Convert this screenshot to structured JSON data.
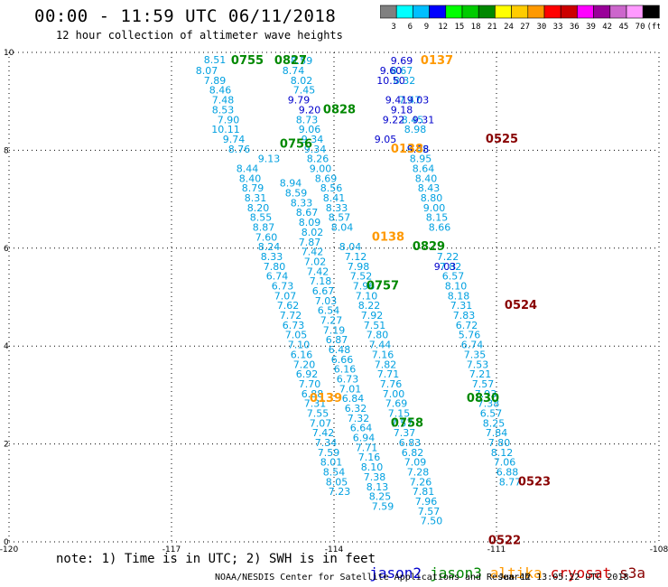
{
  "title": "00:00 - 11:59 UTC 06/11/2018",
  "subtitle": "12 hour collection of altimeter wave heights",
  "colorbar": {
    "labels": [
      "3",
      "6",
      "9",
      "12",
      "15",
      "18",
      "21",
      "24",
      "27",
      "30",
      "33",
      "36",
      "39",
      "42",
      "45",
      "70",
      "(ft)"
    ],
    "colors": [
      "#808080",
      "#00ffff",
      "#00bfff",
      "#0000ff",
      "#00ff00",
      "#00cc00",
      "#008800",
      "#ffff00",
      "#ffcc00",
      "#ff9900",
      "#ff0000",
      "#cc0000",
      "#ff00ff",
      "#990099",
      "#cc66cc",
      "#ff99ff",
      "#000000"
    ]
  },
  "note": "note: 1) Time is in UTC; 2) SWH is in feet",
  "credit": "NOAA/NESDIS Center for Satellite Applications and Research",
  "issued": "Jun 12 13:05:22 UTC 2018",
  "legend": [
    {
      "name": "jason2",
      "color": "#0000cc"
    },
    {
      "name": "jason3",
      "color": "#008800"
    },
    {
      "name": "altika",
      "color": "#ff9900"
    },
    {
      "name": "cryosat",
      "color": "#cc0000"
    },
    {
      "name": "s3a",
      "color": "#880000"
    }
  ],
  "chart_data": {
    "type": "scatter",
    "xlim": [
      -120,
      -108
    ],
    "ylim": [
      0,
      10
    ],
    "x_ticks": [
      -120,
      -117,
      -114,
      -111,
      -108
    ],
    "x_tick_labels": [
      "-120",
      "-117",
      "-114",
      "-111",
      "-108"
    ],
    "y_ticks": [
      0,
      2,
      4,
      6,
      8,
      10
    ],
    "y_tick_labels": [
      "0",
      "2",
      "4",
      "6",
      "8",
      "10"
    ],
    "grid": true,
    "series": [
      {
        "color": "#00a0e0",
        "points": [
          [
            -116.2,
            9.85,
            "8.51"
          ],
          [
            -116.35,
            9.63,
            "8.07"
          ],
          [
            -116.2,
            9.43,
            "7.89"
          ],
          [
            -116.1,
            9.23,
            "8.46"
          ],
          [
            -116.05,
            9.03,
            "7.48"
          ],
          [
            -116.05,
            8.83,
            "8.53"
          ],
          [
            -115.95,
            8.63,
            "7.90"
          ],
          [
            -116.0,
            8.43,
            "10.11"
          ],
          [
            -115.85,
            8.23,
            "9.74"
          ],
          [
            -115.75,
            8.03,
            "8.76"
          ],
          [
            -115.6,
            7.63,
            "8.44"
          ],
          [
            -115.55,
            7.43,
            "8.40"
          ],
          [
            -115.5,
            7.23,
            "8.79"
          ],
          [
            -115.45,
            7.03,
            "8.31"
          ],
          [
            -115.4,
            6.83,
            "8.20"
          ],
          [
            -115.35,
            6.63,
            "8.55"
          ],
          [
            -115.3,
            6.43,
            "8.87"
          ],
          [
            -115.25,
            6.23,
            "7.60"
          ],
          [
            -115.2,
            6.03,
            "8.24"
          ],
          [
            -115.15,
            5.83,
            "8.33"
          ],
          [
            -115.2,
            7.83,
            "9.13"
          ],
          [
            -115.1,
            5.63,
            "7.80"
          ],
          [
            -115.05,
            5.43,
            "6.74"
          ],
          [
            -114.95,
            5.23,
            "6.73"
          ],
          [
            -114.9,
            5.03,
            "7.07"
          ],
          [
            -114.85,
            4.83,
            "7.62"
          ],
          [
            -114.8,
            4.63,
            "7.72"
          ],
          [
            -114.75,
            4.43,
            "6.73"
          ],
          [
            -114.7,
            4.23,
            "7.05"
          ],
          [
            -114.65,
            4.03,
            "7.10"
          ],
          [
            -114.6,
            3.83,
            "6.16"
          ],
          [
            -114.55,
            3.63,
            "7.20"
          ],
          [
            -114.5,
            3.43,
            "6.92"
          ],
          [
            -114.45,
            3.23,
            "7.70"
          ],
          [
            -114.4,
            3.03,
            "6.88"
          ],
          [
            -114.35,
            2.83,
            "7.31"
          ],
          [
            -114.3,
            2.63,
            "7.55"
          ],
          [
            -114.25,
            2.43,
            "7.07"
          ],
          [
            -114.2,
            2.23,
            "7.42"
          ],
          [
            -114.15,
            2.03,
            "7.34"
          ],
          [
            -114.1,
            1.83,
            "7.59"
          ],
          [
            -114.05,
            1.63,
            "8.01"
          ],
          [
            -114.0,
            1.43,
            "8.54"
          ],
          [
            -113.95,
            1.23,
            "8.05"
          ],
          [
            -113.9,
            1.03,
            "7.23"
          ],
          [
            -114.8,
            7.33,
            "8.94"
          ],
          [
            -114.7,
            7.13,
            "8.59"
          ],
          [
            -114.6,
            6.93,
            "8.33"
          ],
          [
            -114.5,
            6.73,
            "8.67"
          ],
          [
            -114.45,
            6.53,
            "8.09"
          ],
          [
            -114.4,
            6.33,
            "8.02"
          ],
          [
            -114.45,
            6.13,
            "7.87"
          ],
          [
            -114.4,
            5.93,
            "7.42"
          ],
          [
            -114.35,
            5.73,
            "7.02"
          ],
          [
            -114.3,
            5.53,
            "7.42"
          ],
          [
            -114.25,
            5.33,
            "7.18"
          ],
          [
            -114.2,
            5.13,
            "6.67"
          ],
          [
            -114.15,
            4.93,
            "7.03"
          ],
          [
            -114.1,
            4.73,
            "6.54"
          ],
          [
            -114.05,
            4.53,
            "7.27"
          ],
          [
            -114.0,
            4.33,
            "7.19"
          ],
          [
            -113.95,
            4.13,
            "6.87"
          ],
          [
            -113.9,
            3.93,
            "6.48"
          ],
          [
            -113.85,
            3.73,
            "6.66"
          ],
          [
            -113.8,
            3.53,
            "6.16"
          ],
          [
            -113.75,
            3.33,
            "6.73"
          ],
          [
            -113.7,
            3.13,
            "7.01"
          ],
          [
            -113.65,
            2.93,
            "6.84"
          ],
          [
            -113.6,
            2.73,
            "6.32"
          ],
          [
            -113.55,
            2.53,
            "7.32"
          ],
          [
            -113.5,
            2.33,
            "6.64"
          ],
          [
            -113.45,
            2.13,
            "6.94"
          ],
          [
            -113.4,
            1.93,
            "7.71"
          ],
          [
            -113.35,
            1.73,
            "7.16"
          ],
          [
            -113.3,
            1.53,
            "8.10"
          ],
          [
            -113.25,
            1.33,
            "7.38"
          ],
          [
            -113.2,
            1.13,
            "8.13"
          ],
          [
            -113.15,
            0.93,
            "8.25"
          ],
          [
            -113.1,
            0.73,
            "7.59"
          ],
          [
            -114.6,
            9.83,
            "8.59"
          ],
          [
            -114.75,
            9.63,
            "8.74"
          ],
          [
            -114.6,
            9.43,
            "8.02"
          ],
          [
            -114.55,
            9.23,
            "7.45"
          ],
          [
            -114.5,
            8.63,
            "8.73"
          ],
          [
            -114.45,
            8.43,
            "9.06"
          ],
          [
            -114.4,
            8.23,
            "9.34"
          ],
          [
            -114.35,
            8.03,
            "9.34"
          ],
          [
            -114.3,
            7.83,
            "8.26"
          ],
          [
            -114.25,
            7.63,
            "9.00"
          ],
          [
            -114.15,
            7.43,
            "8.69"
          ],
          [
            -114.05,
            7.23,
            "8.56"
          ],
          [
            -114.0,
            7.03,
            "8.41"
          ],
          [
            -113.95,
            6.83,
            "8.33"
          ],
          [
            -113.9,
            6.63,
            "8.57"
          ],
          [
            -113.85,
            6.43,
            "8.04"
          ],
          [
            -113.7,
            6.03,
            "8.04"
          ],
          [
            -113.6,
            5.83,
            "7.12"
          ],
          [
            -113.55,
            5.63,
            "7.98"
          ],
          [
            -113.5,
            5.43,
            "7.52"
          ],
          [
            -113.45,
            5.23,
            "7.96"
          ],
          [
            -113.4,
            5.03,
            "7.10"
          ],
          [
            -113.35,
            4.83,
            "8.22"
          ],
          [
            -113.3,
            4.63,
            "7.92"
          ],
          [
            -113.25,
            4.43,
            "7.51"
          ],
          [
            -113.2,
            4.23,
            "7.80"
          ],
          [
            -113.15,
            4.03,
            "7.44"
          ],
          [
            -113.1,
            3.83,
            "7.16"
          ],
          [
            -113.05,
            3.63,
            "7.82"
          ],
          [
            -113.0,
            3.43,
            "7.71"
          ],
          [
            -112.95,
            3.23,
            "7.76"
          ],
          [
            -112.9,
            3.03,
            "7.00"
          ],
          [
            -112.85,
            2.83,
            "7.69"
          ],
          [
            -112.8,
            2.63,
            "7.15"
          ],
          [
            -112.75,
            2.43,
            "7.57"
          ],
          [
            -112.7,
            2.23,
            "7.37"
          ],
          [
            -112.6,
            2.03,
            "6.83"
          ],
          [
            -112.55,
            1.83,
            "6.82"
          ],
          [
            -112.5,
            1.63,
            "7.09"
          ],
          [
            -112.45,
            1.43,
            "7.28"
          ],
          [
            -112.4,
            1.23,
            "7.26"
          ],
          [
            -112.35,
            1.03,
            "7.81"
          ],
          [
            -112.3,
            0.83,
            "7.96"
          ],
          [
            -112.25,
            0.63,
            "7.57"
          ],
          [
            -112.2,
            0.43,
            "7.50"
          ],
          [
            -112.75,
            9.63,
            "8.67"
          ],
          [
            -112.7,
            9.43,
            "8.32"
          ],
          [
            -112.6,
            9.03,
            "7.47"
          ],
          [
            -112.55,
            8.63,
            "8.45"
          ],
          [
            -112.5,
            8.43,
            "8.98"
          ],
          [
            -112.45,
            8.03,
            "8.45"
          ],
          [
            -112.4,
            7.83,
            "8.95"
          ],
          [
            -112.35,
            7.63,
            "8.64"
          ],
          [
            -112.3,
            7.43,
            "8.40"
          ],
          [
            -112.25,
            7.23,
            "8.43"
          ],
          [
            -112.2,
            7.03,
            "8.80"
          ],
          [
            -112.15,
            6.83,
            "9.00"
          ],
          [
            -112.1,
            6.63,
            "8.15"
          ],
          [
            -112.05,
            6.43,
            "8.66"
          ],
          [
            -111.9,
            5.83,
            "7.22"
          ],
          [
            -111.85,
            5.63,
            "7.82"
          ],
          [
            -111.8,
            5.43,
            "6.57"
          ],
          [
            -111.75,
            5.23,
            "8.10"
          ],
          [
            -111.7,
            5.03,
            "8.18"
          ],
          [
            -111.65,
            4.83,
            "7.31"
          ],
          [
            -111.6,
            4.63,
            "7.83"
          ],
          [
            -111.55,
            4.43,
            "6.72"
          ],
          [
            -111.5,
            4.23,
            "5.76"
          ],
          [
            -111.45,
            4.03,
            "6.74"
          ],
          [
            -111.4,
            3.83,
            "7.35"
          ],
          [
            -111.35,
            3.63,
            "7.53"
          ],
          [
            -111.3,
            3.43,
            "7.21"
          ],
          [
            -111.25,
            3.23,
            "7.57"
          ],
          [
            -111.2,
            3.03,
            "7.93"
          ],
          [
            -111.15,
            2.83,
            "7.38"
          ],
          [
            -111.1,
            2.63,
            "6.57"
          ],
          [
            -111.05,
            2.43,
            "8.25"
          ],
          [
            -111.0,
            2.23,
            "7.84"
          ],
          [
            -110.95,
            2.03,
            "7.80"
          ],
          [
            -110.9,
            1.83,
            "8.12"
          ],
          [
            -110.85,
            1.63,
            "7.06"
          ],
          [
            -110.8,
            1.43,
            "6.88"
          ],
          [
            -110.75,
            1.23,
            "8.77"
          ]
        ]
      },
      {
        "color": "#0000cc",
        "points": [
          [
            -114.65,
            9.03,
            "9.79"
          ],
          [
            -114.45,
            8.83,
            "9.20"
          ],
          [
            -112.75,
            9.83,
            "9.69"
          ],
          [
            -112.95,
            9.63,
            "9.60"
          ],
          [
            -112.95,
            9.43,
            "10.50"
          ],
          [
            -112.85,
            9.03,
            "9.41"
          ],
          [
            -112.45,
            9.03,
            "9.03"
          ],
          [
            -112.75,
            8.83,
            "9.18"
          ],
          [
            -112.9,
            8.63,
            "9.22"
          ],
          [
            -112.35,
            8.63,
            "9.31"
          ],
          [
            -113.05,
            8.23,
            "9.05"
          ],
          [
            -112.45,
            8.03,
            "9.08"
          ],
          [
            -111.95,
            5.63,
            "9.03"
          ]
        ]
      },
      {
        "color": "#008800",
        "points": [
          [
            -115.6,
            9.83,
            "0755"
          ],
          [
            -114.8,
            9.83,
            "0827"
          ],
          [
            -113.9,
            8.83,
            "0828"
          ],
          [
            -114.7,
            8.13,
            "0756"
          ],
          [
            -112.25,
            6.03,
            "0829"
          ],
          [
            -113.1,
            5.23,
            "0757"
          ],
          [
            -111.25,
            2.93,
            "0830"
          ],
          [
            -112.65,
            2.43,
            "0758"
          ]
        ]
      },
      {
        "color": "#ff9900",
        "points": [
          [
            -112.1,
            9.83,
            "0137"
          ],
          [
            -112.65,
            8.03,
            "0138"
          ],
          [
            -113.0,
            6.23,
            "0138"
          ],
          [
            -114.15,
            2.93,
            "0139"
          ]
        ]
      },
      {
        "color": "#880000",
        "points": [
          [
            -110.9,
            8.23,
            "0525"
          ],
          [
            -110.55,
            4.83,
            "0524"
          ],
          [
            -110.3,
            1.23,
            "0523"
          ],
          [
            -110.85,
            0.03,
            "0522"
          ]
        ]
      }
    ]
  }
}
